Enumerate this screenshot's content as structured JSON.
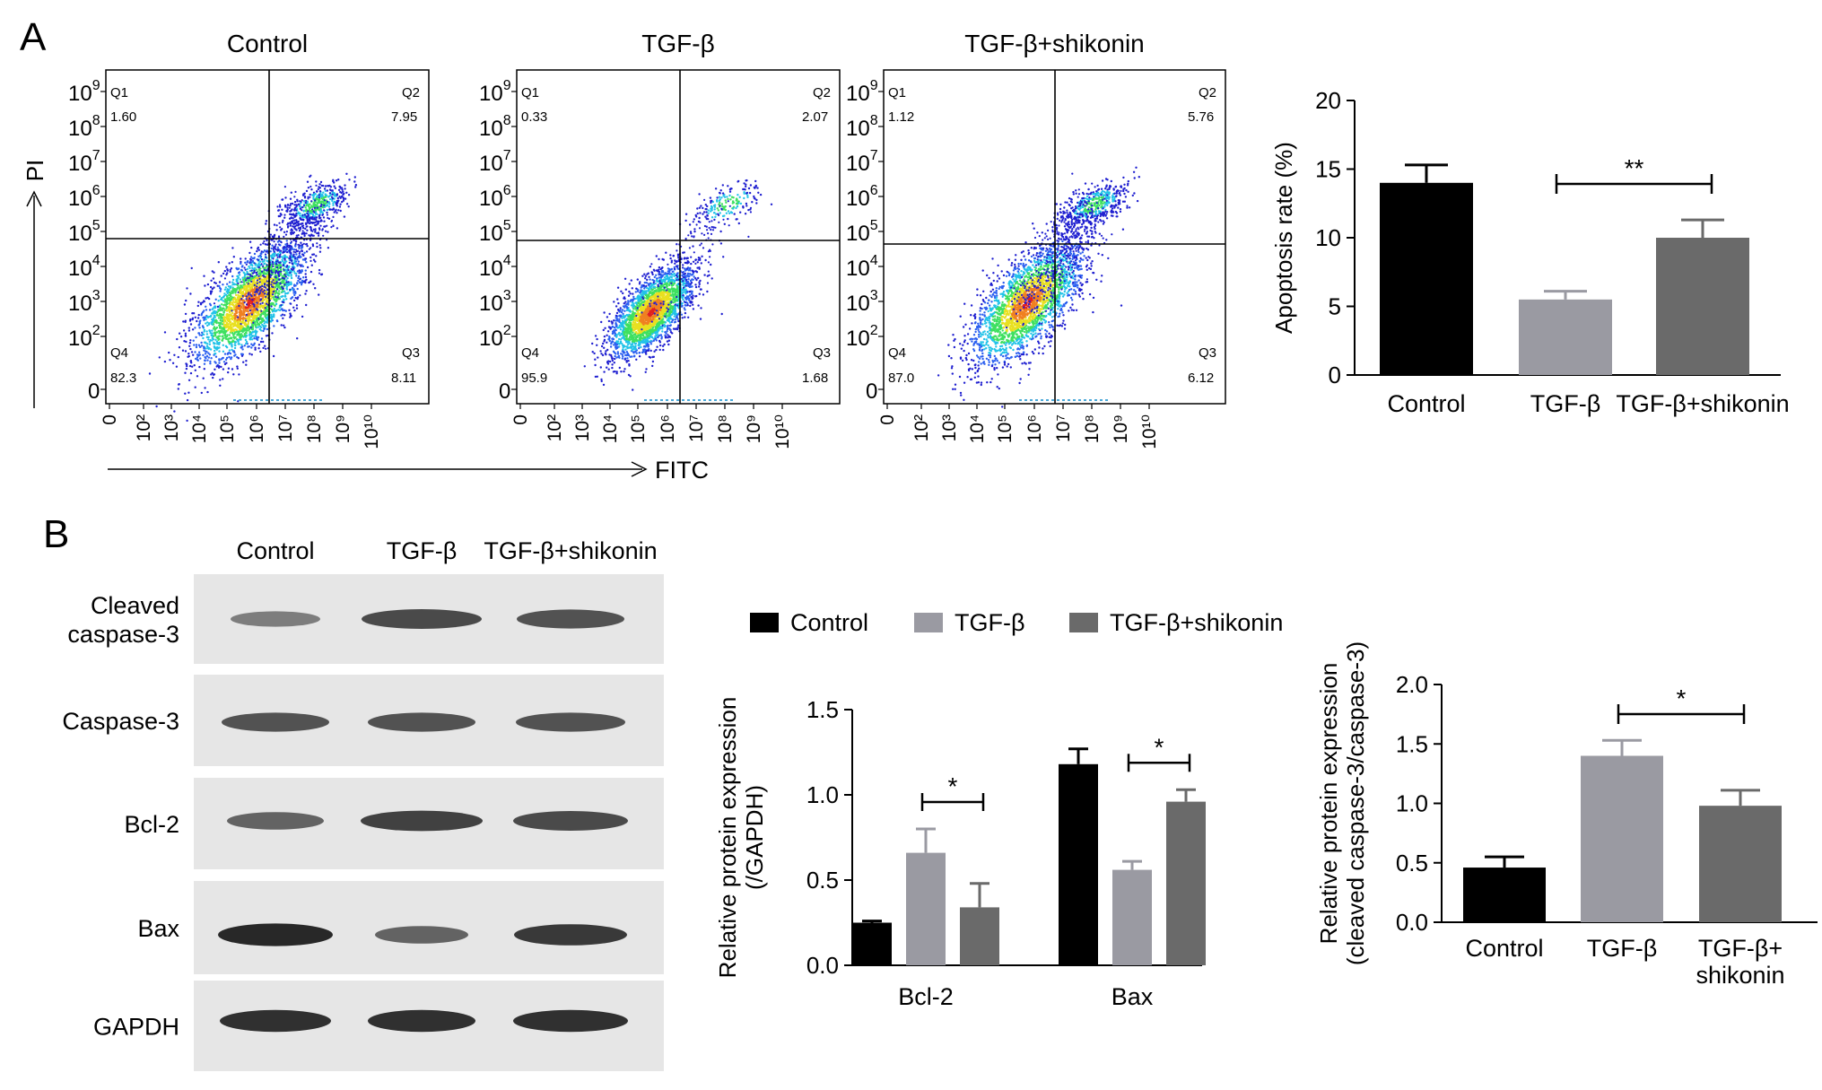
{
  "panel_a": {
    "letter": "A",
    "flow": {
      "y_axis_label": "PI",
      "x_axis_label": "FITC",
      "y_ticks": [
        {
          "base": "10",
          "exp": "9"
        },
        {
          "base": "10",
          "exp": "8"
        },
        {
          "base": "10",
          "exp": "7"
        },
        {
          "base": "10",
          "exp": "6"
        },
        {
          "base": "10",
          "exp": "5"
        },
        {
          "base": "10",
          "exp": "4"
        },
        {
          "base": "10",
          "exp": "3"
        },
        {
          "base": "10",
          "exp": "2"
        },
        {
          "base": "0",
          "exp": ""
        }
      ],
      "x_ticks": [
        "0",
        "10²",
        "10³",
        "10⁴",
        "10⁵",
        "10⁶",
        "10⁷",
        "10⁸",
        "10⁹",
        "10¹⁰"
      ],
      "plots": [
        {
          "title": "Control",
          "q1": "1.60",
          "q2": "7.95",
          "q3": "8.11",
          "q4": "82.3"
        },
        {
          "title": "TGF-β",
          "q1": "0.33",
          "q2": "2.07",
          "q3": "1.68",
          "q4": "95.9"
        },
        {
          "title": "TGF-β+shikonin",
          "q1": "1.12",
          "q2": "5.76",
          "q3": "6.12",
          "q4": "87.0"
        }
      ],
      "quadrant_labels": [
        "Q1",
        "Q2",
        "Q3",
        "Q4"
      ]
    }
  },
  "panel_b": {
    "letter": "B",
    "wb_columns": [
      "Control",
      "TGF-β",
      "TGF-β+shikonin"
    ],
    "wb_rows": [
      {
        "label_lines": [
          "Cleaved",
          "caspase-3"
        ],
        "intensity": [
          0.45,
          0.75,
          0.7
        ]
      },
      {
        "label_lines": [
          "Caspase-3"
        ],
        "intensity": [
          0.7,
          0.7,
          0.7
        ]
      },
      {
        "label_lines": [
          "Bcl-2"
        ],
        "intensity": [
          0.6,
          0.8,
          0.75
        ]
      },
      {
        "label_lines": [
          "Bax"
        ],
        "intensity": [
          0.95,
          0.6,
          0.85
        ]
      },
      {
        "label_lines": [
          "GAPDH"
        ],
        "intensity": [
          0.9,
          0.9,
          0.9
        ]
      }
    ]
  },
  "chart_data": [
    {
      "id": "apoptosis",
      "type": "bar",
      "categories": [
        "Control",
        "TGF-β",
        "TGF-β+shikonin"
      ],
      "values": [
        14.0,
        5.5,
        10.0
      ],
      "errors": [
        1.3,
        0.6,
        1.3
      ],
      "colors": [
        "#000000",
        "#9a9aa2",
        "#6a6a6a"
      ],
      "ylabel": "Apoptosis rate (%)",
      "ylim": [
        0,
        20
      ],
      "yticks": [
        "0",
        "5",
        "10",
        "15",
        "20"
      ],
      "significance": [
        {
          "from": 1,
          "to": 2,
          "label": "**"
        }
      ]
    },
    {
      "id": "bcl2-bax",
      "type": "bar",
      "categories": [
        "Bcl-2",
        "Bax"
      ],
      "series": [
        {
          "name": "Control",
          "color": "#000000",
          "values": [
            0.25,
            1.18
          ],
          "errors": [
            0.01,
            0.09
          ]
        },
        {
          "name": "TGF-β",
          "color": "#9a9aa2",
          "values": [
            0.66,
            0.56
          ],
          "errors": [
            0.14,
            0.05
          ]
        },
        {
          "name": "TGF-β+shikonin",
          "color": "#6a6a6a",
          "values": [
            0.34,
            0.96
          ],
          "errors": [
            0.14,
            0.07
          ]
        }
      ],
      "ylabel_lines": [
        "Relative protein expression",
        "(/GAPDH)"
      ],
      "ylim": [
        0,
        1.5
      ],
      "yticks": [
        "0.0",
        "0.5",
        "1.0",
        "1.5"
      ],
      "significance": [
        {
          "category": 0,
          "from": 1,
          "to": 2,
          "label": "*"
        },
        {
          "category": 1,
          "from": 1,
          "to": 2,
          "label": "*"
        }
      ]
    },
    {
      "id": "cleaved-ratio",
      "type": "bar",
      "categories": [
        "Control",
        "TGF-β",
        "TGF-β+shikonin"
      ],
      "category_lines": [
        [
          "Control"
        ],
        [
          "TGF-β"
        ],
        [
          "TGF-β+",
          "shikonin"
        ]
      ],
      "values": [
        0.46,
        1.4,
        0.98
      ],
      "errors": [
        0.09,
        0.13,
        0.13
      ],
      "colors": [
        "#000000",
        "#9a9aa2",
        "#6a6a6a"
      ],
      "ylabel_lines": [
        "Relative protein expression",
        "(cleaved caspase-3/caspase-3)"
      ],
      "ylim": [
        0,
        2.0
      ],
      "yticks": [
        "0.0",
        "0.5",
        "1.0",
        "1.5",
        "2.0"
      ],
      "significance": [
        {
          "from": 1,
          "to": 2,
          "label": "*"
        }
      ]
    }
  ]
}
